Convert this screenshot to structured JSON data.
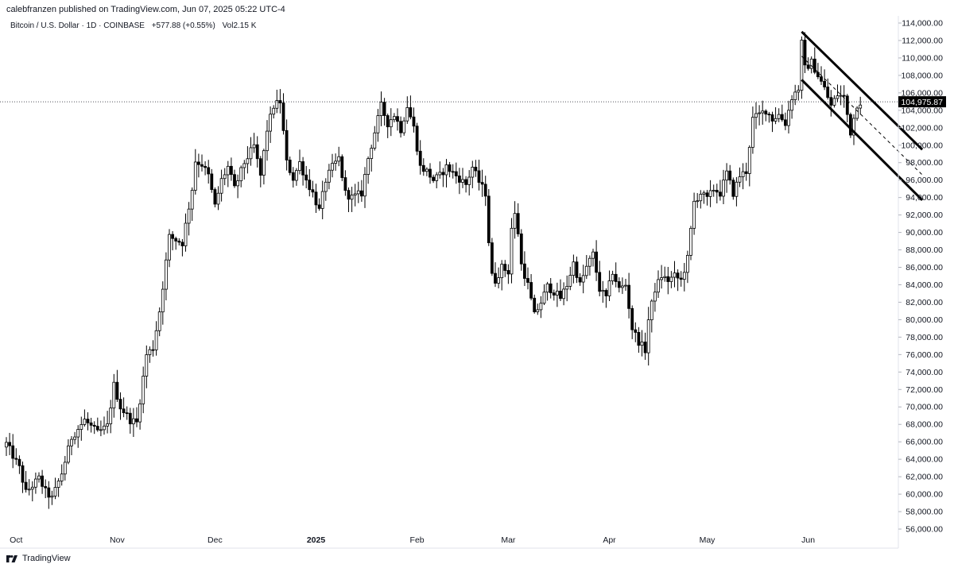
{
  "header": {
    "published": "calebfranzen published on TradingView.com, Jun 07, 2025 05:22 UTC-4"
  },
  "symbol": {
    "name": "Bitcoin / U.S. Dollar · 1D · COINBASE",
    "change": "+577.88 (+0.55%)",
    "volume": "Vol2.15 K"
  },
  "footer": {
    "brand": "TradingView",
    "icon": "tradingview-logo-icon"
  },
  "colors": {
    "candle": "#000000",
    "up_body": "#ffffff",
    "down_body": "#000000",
    "price_line": "#131722",
    "price_tag_bg": "#000000",
    "price_tag_text": "#ffffff",
    "axis_text": "#131722"
  },
  "chart_data": {
    "type": "candlestick",
    "title": "Bitcoin / U.S. Dollar · 1D · COINBASE",
    "xlabel": "",
    "ylabel": "",
    "ylim": [
      55000,
      115000
    ],
    "grid": false,
    "y_ticks": [
      "56,000.00",
      "58,000.00",
      "60,000.00",
      "62,000.00",
      "64,000.00",
      "66,000.00",
      "68,000.00",
      "70,000.00",
      "72,000.00",
      "74,000.00",
      "76,000.00",
      "78,000.00",
      "80,000.00",
      "82,000.00",
      "84,000.00",
      "86,000.00",
      "88,000.00",
      "90,000.00",
      "92,000.00",
      "94,000.00",
      "96,000.00",
      "98,000.00",
      "100,000.00",
      "102,000.00",
      "104,000.00",
      "106,000.00",
      "108,000.00",
      "110,000.00",
      "112,000.00",
      "114,000.00"
    ],
    "x_ticks": [
      {
        "label": "Oct",
        "index": 3,
        "bold": false
      },
      {
        "label": "Nov",
        "index": 34,
        "bold": false
      },
      {
        "label": "Dec",
        "index": 64,
        "bold": false
      },
      {
        "label": "2025",
        "index": 95,
        "bold": true
      },
      {
        "label": "Feb",
        "index": 126,
        "bold": false
      },
      {
        "label": "Mar",
        "index": 154,
        "bold": false
      },
      {
        "label": "Apr",
        "index": 185,
        "bold": false
      },
      {
        "label": "May",
        "index": 215,
        "bold": false
      },
      {
        "label": "Jun",
        "index": 246,
        "bold": false
      }
    ],
    "last_price": 104975.87,
    "last_price_label": "104,975.87",
    "anchors": [
      [
        0,
        65800
      ],
      [
        4,
        63000
      ],
      [
        6,
        60200
      ],
      [
        10,
        61800
      ],
      [
        12,
        60300
      ],
      [
        14,
        59500
      ],
      [
        17,
        62400
      ],
      [
        20,
        66500
      ],
      [
        24,
        68500
      ],
      [
        28,
        67000
      ],
      [
        31,
        67800
      ],
      [
        33,
        72500
      ],
      [
        35,
        70000
      ],
      [
        38,
        68500
      ],
      [
        40,
        68200
      ],
      [
        43,
        76000
      ],
      [
        45,
        76800
      ],
      [
        47,
        81000
      ],
      [
        50,
        89500
      ],
      [
        54,
        88800
      ],
      [
        57,
        95000
      ],
      [
        58,
        98200
      ],
      [
        60,
        97800
      ],
      [
        62,
        96500
      ],
      [
        64,
        93000
      ],
      [
        66,
        96000
      ],
      [
        68,
        97500
      ],
      [
        70,
        95000
      ],
      [
        73,
        98000
      ],
      [
        76,
        99900
      ],
      [
        78,
        96500
      ],
      [
        80,
        101800
      ],
      [
        82,
        104500
      ],
      [
        84,
        105000
      ],
      [
        86,
        98000
      ],
      [
        88,
        96200
      ],
      [
        90,
        98000
      ],
      [
        92,
        96000
      ],
      [
        94,
        94500
      ],
      [
        96,
        92500
      ],
      [
        98,
        96000
      ],
      [
        100,
        97500
      ],
      [
        102,
        98500
      ],
      [
        104,
        94500
      ],
      [
        106,
        94000
      ],
      [
        109,
        94500
      ],
      [
        111,
        98500
      ],
      [
        113,
        101500
      ],
      [
        115,
        104500
      ],
      [
        117,
        102500
      ],
      [
        119,
        103500
      ],
      [
        121,
        101800
      ],
      [
        123,
        104500
      ],
      [
        125,
        102000
      ],
      [
        127,
        97500
      ],
      [
        129,
        97000
      ],
      [
        131,
        96000
      ],
      [
        133,
        96500
      ],
      [
        135,
        97500
      ],
      [
        138,
        96500
      ],
      [
        141,
        95500
      ],
      [
        143,
        97500
      ],
      [
        145,
        95800
      ],
      [
        147,
        94500
      ],
      [
        148,
        89000
      ],
      [
        149,
        85000
      ],
      [
        150,
        84500
      ],
      [
        152,
        86000
      ],
      [
        154,
        85500
      ],
      [
        155,
        90500
      ],
      [
        156,
        92000
      ],
      [
        157,
        90000
      ],
      [
        158,
        86300
      ],
      [
        160,
        84000
      ],
      [
        162,
        80500
      ],
      [
        164,
        82000
      ],
      [
        166,
        83800
      ],
      [
        168,
        83200
      ],
      [
        170,
        82500
      ],
      [
        172,
        84000
      ],
      [
        174,
        86500
      ],
      [
        176,
        84000
      ],
      [
        178,
        86000
      ],
      [
        180,
        87500
      ],
      [
        182,
        83500
      ],
      [
        184,
        82500
      ],
      [
        186,
        85500
      ],
      [
        188,
        83500
      ],
      [
        190,
        84000
      ],
      [
        192,
        79000
      ],
      [
        194,
        77500
      ],
      [
        196,
        76500
      ],
      [
        197,
        80000
      ],
      [
        199,
        83500
      ],
      [
        201,
        85000
      ],
      [
        203,
        84500
      ],
      [
        205,
        85000
      ],
      [
        207,
        84500
      ],
      [
        209,
        87000
      ],
      [
        211,
        93500
      ],
      [
        213,
        94500
      ],
      [
        215,
        93800
      ],
      [
        217,
        95000
      ],
      [
        219,
        94500
      ],
      [
        221,
        96800
      ],
      [
        223,
        94500
      ],
      [
        225,
        96500
      ],
      [
        227,
        97000
      ],
      [
        229,
        103000
      ],
      [
        231,
        103500
      ],
      [
        233,
        104000
      ],
      [
        235,
        103000
      ],
      [
        237,
        103500
      ],
      [
        239,
        102500
      ],
      [
        241,
        105500
      ],
      [
        243,
        106500
      ],
      [
        244,
        111700
      ],
      [
        245,
        108800
      ],
      [
        247,
        109500
      ],
      [
        249,
        108000
      ],
      [
        251,
        106500
      ],
      [
        253,
        104500
      ],
      [
        255,
        105800
      ],
      [
        257,
        105500
      ],
      [
        259,
        101500
      ],
      [
        261,
        104700
      ],
      [
        262,
        104975
      ]
    ],
    "overlays": [
      {
        "type": "channel-upper",
        "from": [
          244,
          113000
        ],
        "to": [
          281,
          99500
        ],
        "style": "solid"
      },
      {
        "type": "channel-lower",
        "from": [
          244,
          107500
        ],
        "to": [
          281,
          93700
        ],
        "style": "solid"
      },
      {
        "type": "channel-mid",
        "from": [
          244,
          110200
        ],
        "to": [
          281,
          96600
        ],
        "style": "dashed"
      }
    ]
  }
}
